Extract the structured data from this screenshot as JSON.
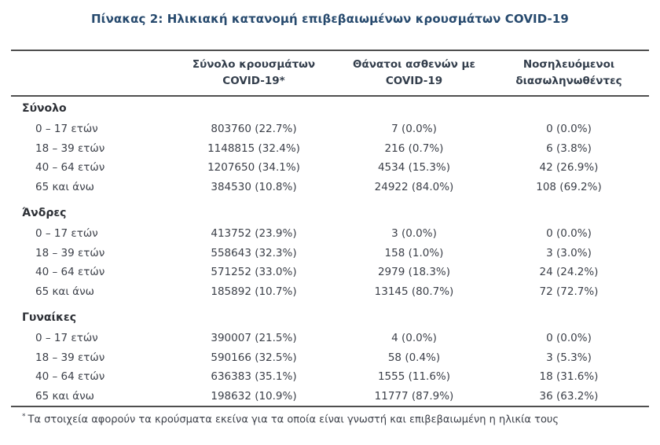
{
  "title": "Πίνακας 2: Ηλικιακή κατανομή επιβεβαιωμένων κρουσμάτων COVID-19",
  "columns": [
    {
      "lines": [
        "Σύνολο κρουσμάτων",
        "COVID-19*"
      ]
    },
    {
      "lines": [
        "Θάνατοι ασθενών με",
        "COVID-19"
      ]
    },
    {
      "lines": [
        "Νοσηλευόμενοι",
        "διασωληνωθέντες"
      ]
    }
  ],
  "sections": [
    {
      "header": "Σύνολο",
      "rows": [
        {
          "label": "0 – 17 ετών",
          "cases": "803760 (22.7%)",
          "deaths": "7 (0.0%)",
          "intubated": "0 (0.0%)"
        },
        {
          "label": "18 – 39 ετών",
          "cases": "1148815 (32.4%)",
          "deaths": "216 (0.7%)",
          "intubated": "6 (3.8%)"
        },
        {
          "label": "40 – 64 ετών",
          "cases": "1207650 (34.1%)",
          "deaths": "4534 (15.3%)",
          "intubated": "42 (26.9%)"
        },
        {
          "label": "65 και άνω",
          "cases": "384530 (10.8%)",
          "deaths": "24922 (84.0%)",
          "intubated": "108 (69.2%)"
        }
      ]
    },
    {
      "header": "Άνδρες",
      "rows": [
        {
          "label": "0 – 17 ετών",
          "cases": "413752 (23.9%)",
          "deaths": "3 (0.0%)",
          "intubated": "0 (0.0%)"
        },
        {
          "label": "18 – 39 ετών",
          "cases": "558643 (32.3%)",
          "deaths": "158 (1.0%)",
          "intubated": "3 (3.0%)"
        },
        {
          "label": "40 – 64 ετών",
          "cases": "571252 (33.0%)",
          "deaths": "2979 (18.3%)",
          "intubated": "24 (24.2%)"
        },
        {
          "label": "65 και άνω",
          "cases": "185892 (10.7%)",
          "deaths": "13145 (80.7%)",
          "intubated": "72 (72.7%)"
        }
      ]
    },
    {
      "header": "Γυναίκες",
      "rows": [
        {
          "label": "0 – 17 ετών",
          "cases": "390007 (21.5%)",
          "deaths": "4 (0.0%)",
          "intubated": "0 (0.0%)"
        },
        {
          "label": "18 – 39 ετών",
          "cases": "590166 (32.5%)",
          "deaths": "58 (0.4%)",
          "intubated": "3 (5.3%)"
        },
        {
          "label": "40 – 64 ετών",
          "cases": "636383 (35.1%)",
          "deaths": "1555 (11.6%)",
          "intubated": "18 (31.6%)"
        },
        {
          "label": "65 και άνω",
          "cases": "198632 (10.9%)",
          "deaths": "11777 (87.9%)",
          "intubated": "36 (63.2%)"
        }
      ]
    }
  ],
  "footnote": {
    "marker": "*",
    "text": "Τα στοιχεία αφορούν τα κρούσματα εκείνα για τα οποία είναι γνωστή και επιβεβαιωμένη η ηλικία τους"
  },
  "colors": {
    "title_text": "#274a6e",
    "body_text": "#3c4049",
    "section_header_text": "#2d3036",
    "rule": "#4f4f4f",
    "background": "#ffffff"
  }
}
